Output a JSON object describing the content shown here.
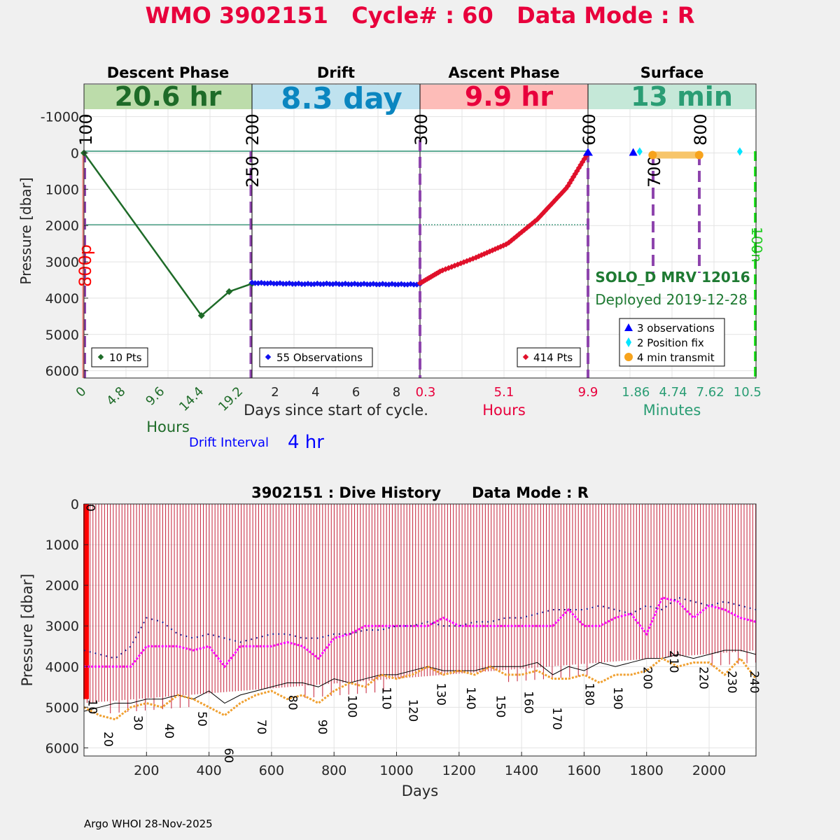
{
  "title": "WMO 3902151   Cycle# : 60   Data Mode : R",
  "colors": {
    "title": "#e8003c",
    "descent": "#1e6b28",
    "descent_bg": "#bcdcaa",
    "drift": "#0a86c0",
    "drift_bg": "#bfe2ef",
    "ascent": "#e8003c",
    "ascent_bg": "#fdbcb8",
    "surface": "#2a9d74",
    "surface_bg": "#c5e8d8",
    "drift_pts": "#1010f0",
    "ascent_pts": "#e0102a",
    "marker_purple": "#8e44ad",
    "transmit": "#f7a31c",
    "dive_line": "#c0102a",
    "magenta": "#ff00ff",
    "navy": "#1a1a90",
    "orange_dots": "#f0a030"
  },
  "cycle": {
    "phase_headers": [
      "Descent Phase",
      "Drift",
      "Ascent Phase",
      "Surface"
    ],
    "phase_durations": [
      "20.6 hr",
      "8.3 day",
      "9.9 hr",
      "13 min"
    ],
    "y_label": "Pressure [dbar]",
    "y_ticks": [
      "-1000",
      "0",
      "1000",
      "2000",
      "3000",
      "4000",
      "5000",
      "6000"
    ],
    "y_tick_values": [
      -1000,
      0,
      1000,
      2000,
      3000,
      4000,
      5000,
      6000
    ],
    "ylim": [
      -1900,
      6200
    ],
    "x_ticks_descent": [
      "0",
      "4.8",
      "9.6",
      "14.4",
      "19.2"
    ],
    "x_ticks_drift": [
      "2",
      "4",
      "6",
      "8"
    ],
    "x_ticks_ascent": [
      "0.3",
      "5.1",
      "9.9"
    ],
    "x_ticks_surface": [
      "1.86",
      "4.74",
      "7.62",
      "10.5"
    ],
    "x_label_drift": "Days since start of cycle.",
    "x_label_descent": "Hours",
    "x_label_ascent": "Hours",
    "x_label_surface": "Minutes",
    "drift_interval_label": "Drift Interval",
    "drift_interval_value": "4 hr",
    "vertical_labels": [
      "100",
      "250",
      "200",
      "300",
      "600",
      "700",
      "800",
      "800p",
      "100n"
    ],
    "float_type": "SOLO_D MRV 12016",
    "deployed": "Deployed 2019-12-28",
    "legend_descent": "10 Pts",
    "legend_drift": "55 Observations",
    "legend_ascent": "414 Pts",
    "legend_surface": [
      "3 observations",
      "2 Position fix",
      "4 min transmit"
    ]
  },
  "chart_data": [
    {
      "type": "line",
      "title": "WMO 3902151   Cycle# : 60   Data Mode : R",
      "ylabel": "Pressure [dbar]",
      "ylim": [
        -1900,
        6200
      ],
      "series": [
        {
          "segment": "Descent",
          "x_unit": "hours",
          "x": [
            0,
            14.4,
            17.8,
            20.6
          ],
          "values": [
            0,
            4480,
            3820,
            3600
          ]
        },
        {
          "segment": "Drift",
          "x_unit": "days",
          "x": [
            0.86,
            1.5,
            2.5,
            3.5,
            4.5,
            5.5,
            6.5,
            7.5,
            8.3,
            9.16
          ],
          "values": [
            3580,
            3590,
            3600,
            3610,
            3605,
            3610,
            3612,
            3615,
            3618,
            3620
          ]
        },
        {
          "segment": "Ascent",
          "x_unit": "hours",
          "x": [
            0.3,
            1.5,
            3.5,
            5.3,
            7.0,
            8.7,
            9.9
          ],
          "values": [
            3590,
            3250,
            2880,
            2500,
            1830,
            950,
            0
          ]
        },
        {
          "segment": "Surface observations",
          "x_unit": "minutes",
          "x": [
            3.8,
            13
          ],
          "values": [
            0,
            0
          ]
        },
        {
          "segment": "Surface transmit",
          "x_unit": "minutes",
          "x": [
            5.0,
            9.0
          ],
          "values": [
            0,
            0
          ]
        }
      ]
    },
    {
      "type": "line",
      "title": "3902151 : Dive History      Data Mode : R",
      "xlabel": "Days",
      "ylabel": "Pressure [dbar]",
      "xlim": [
        0,
        2150
      ],
      "ylim": [
        0,
        6200
      ],
      "x_ticks": [
        "200",
        "400",
        "600",
        "800",
        "1000",
        "1200",
        "1400",
        "1600",
        "1800",
        "2000"
      ],
      "x_tick_values": [
        200,
        400,
        600,
        800,
        1000,
        1200,
        1400,
        1600,
        1800,
        2000
      ],
      "y_ticks": [
        "0",
        "1000",
        "2000",
        "3000",
        "4000",
        "5000",
        "6000"
      ],
      "y_tick_values": [
        0,
        1000,
        2000,
        3000,
        4000,
        5000,
        6000
      ],
      "cycle_labels": [
        "0",
        "10",
        "20",
        "30",
        "40",
        "50",
        "60",
        "70",
        "80",
        "90",
        "100",
        "110",
        "120",
        "130",
        "140",
        "150",
        "160",
        "170",
        "180",
        "190",
        "200",
        "210",
        "220",
        "230",
        "240"
      ],
      "cycle_label_x": [
        8,
        15,
        65,
        160,
        260,
        365,
        450,
        555,
        655,
        750,
        845,
        955,
        1040,
        1130,
        1225,
        1320,
        1410,
        1500,
        1605,
        1695,
        1790,
        1875,
        1970,
        2060,
        2150
      ],
      "cycle_label_y": [
        0,
        4800,
        5600,
        5200,
        5400,
        5100,
        6000,
        5300,
        4700,
        5300,
        4700,
        4500,
        4800,
        4400,
        4500,
        4700,
        4600,
        5000,
        4400,
        4500,
        4000,
        3600,
        4000,
        4100,
        4100
      ],
      "series": [
        {
          "name": "",
          "x": [
            0,
            20,
            60,
            100,
            150,
            200,
            260,
            300,
            350,
            400,
            450,
            500,
            550,
            600,
            650,
            700,
            750,
            800,
            850,
            900,
            950,
            1000,
            1050,
            1100,
            1150,
            1200,
            1250,
            1300,
            1350,
            1400,
            1450,
            1500,
            1550,
            1600,
            1650,
            1700,
            1750,
            1800,
            1850,
            1900,
            1950,
            2000,
            2050,
            2100,
            2150
          ],
          "values": [
            4000,
            4000,
            4000,
            4000,
            4000,
            3500,
            3500,
            3500,
            3600,
            3500,
            4000,
            3500,
            3500,
            3500,
            3400,
            3500,
            3800,
            3300,
            3200,
            3000,
            3000,
            3000,
            3000,
            3000,
            2800,
            3000,
            3000,
            3000,
            3000,
            3000,
            3000,
            3000,
            2600,
            3000,
            3000,
            2800,
            2700,
            3200,
            2300,
            2400,
            2800,
            2500,
            2600,
            2800,
            2900
          ]
        },
        {
          "name": "",
          "x": [
            0,
            50,
            100,
            150,
            200,
            250,
            300,
            350,
            400,
            450,
            500,
            550,
            600,
            650,
            700,
            750,
            800,
            850,
            900,
            950,
            1000,
            1050,
            1100,
            1150,
            1200,
            1250,
            1300,
            1350,
            1400,
            1450,
            1500,
            1550,
            1600,
            1650,
            1700,
            1750,
            1800,
            1850,
            1900,
            1950,
            2000,
            2050,
            2100,
            2150
          ],
          "values": [
            3600,
            3700,
            3800,
            3500,
            2800,
            2900,
            3200,
            3300,
            3200,
            3300,
            3400,
            3300,
            3200,
            3200,
            3300,
            3300,
            3200,
            3200,
            3100,
            3100,
            3000,
            3000,
            2900,
            3000,
            3000,
            2900,
            2900,
            2800,
            2800,
            2700,
            2600,
            2600,
            2600,
            2500,
            2600,
            2700,
            2500,
            2600,
            2300,
            2400,
            2500,
            2400,
            2500,
            2600
          ]
        },
        {
          "name": "",
          "x": [
            0,
            50,
            100,
            150,
            200,
            250,
            300,
            350,
            400,
            450,
            500,
            550,
            600,
            650,
            700,
            750,
            800,
            850,
            900,
            950,
            1000,
            1050,
            1100,
            1150,
            1200,
            1250,
            1300,
            1350,
            1400,
            1450,
            1500,
            1550,
            1600,
            1650,
            1700,
            1750,
            1800,
            1850,
            1900,
            1950,
            2000,
            2050,
            2100,
            2150
          ],
          "values": [
            5100,
            5000,
            4900,
            4900,
            4800,
            4800,
            4700,
            4800,
            4600,
            4900,
            4700,
            4600,
            4500,
            4400,
            4400,
            4500,
            4300,
            4400,
            4300,
            4200,
            4200,
            4100,
            4000,
            4100,
            4100,
            4100,
            4000,
            4000,
            4000,
            3900,
            4200,
            4000,
            4100,
            3900,
            4000,
            3900,
            3800,
            3800,
            3700,
            3800,
            3700,
            3600,
            3600,
            3700
          ]
        },
        {
          "name": "",
          "x": [
            0,
            50,
            100,
            150,
            200,
            250,
            300,
            350,
            400,
            450,
            500,
            550,
            600,
            650,
            700,
            750,
            800,
            850,
            900,
            950,
            1000,
            1050,
            1100,
            1150,
            1200,
            1250,
            1300,
            1350,
            1400,
            1450,
            1500,
            1550,
            1600,
            1650,
            1700,
            1750,
            1800,
            1850,
            1900,
            1950,
            2000,
            2050,
            2100,
            2150
          ],
          "values": [
            5000,
            5200,
            5300,
            5000,
            4900,
            5000,
            4700,
            4800,
            5000,
            5200,
            4900,
            4700,
            4600,
            4800,
            4700,
            4900,
            4600,
            4400,
            4500,
            4200,
            4300,
            4200,
            4000,
            4200,
            4100,
            4200,
            4000,
            4200,
            4200,
            4100,
            4300,
            4300,
            4200,
            4400,
            4200,
            4200,
            4100,
            3800,
            4000,
            3900,
            3900,
            4200,
            3800,
            4300
          ]
        }
      ]
    }
  ],
  "dive_history": {
    "title": "3902151 : Dive History      Data Mode : R",
    "xlabel": "Days",
    "ylabel": "Pressure [dbar]"
  },
  "footer": "Argo WHOI 28-Nov-2025"
}
